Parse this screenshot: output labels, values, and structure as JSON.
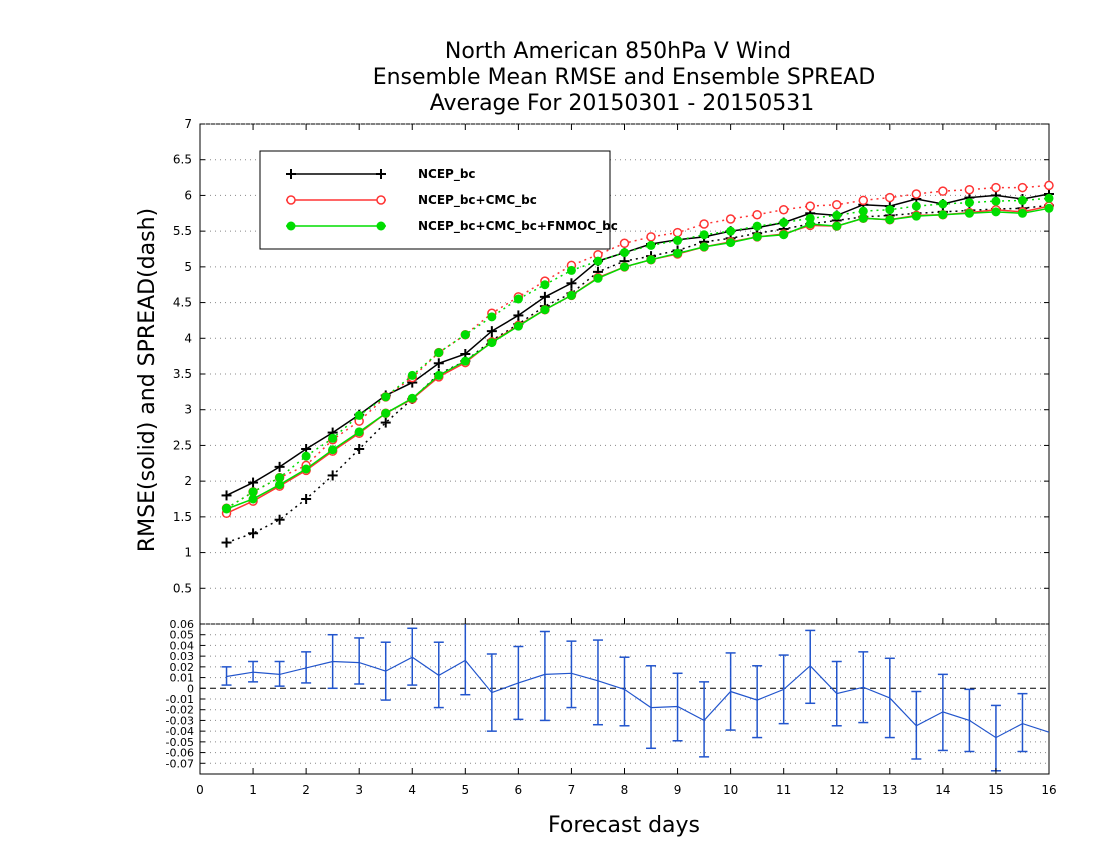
{
  "chart_data": [
    {
      "type": "line",
      "title": [
        "North American 850hPa V Wind",
        "Ensemble Mean RMSE and Ensemble SPREAD",
        "Average For 20150301 - 20150531"
      ],
      "xlabel": "Forecast days",
      "ylabel": "RMSE(solid)  and  SPREAD(dash)",
      "xlim": [
        0,
        16
      ],
      "ylim": [
        0,
        7
      ],
      "x_ticks": [
        0,
        1,
        2,
        3,
        4,
        5,
        6,
        7,
        8,
        9,
        10,
        11,
        12,
        13,
        14,
        15,
        16
      ],
      "y_ticks": [
        0.5,
        1,
        1.5,
        2,
        2.5,
        3,
        3.5,
        4,
        4.5,
        5,
        5.5,
        6,
        6.5,
        7
      ],
      "legend_position": "top-left",
      "x": [
        0.5,
        1,
        1.5,
        2,
        2.5,
        3,
        3.5,
        4,
        4.5,
        5,
        5.5,
        6,
        6.5,
        7,
        7.5,
        8,
        8.5,
        9,
        9.5,
        10,
        10.5,
        11,
        11.5,
        12,
        12.5,
        13,
        13.5,
        14,
        14.5,
        15,
        15.5,
        16
      ],
      "series": [
        {
          "name": "NCEP_bc",
          "color": "#000000",
          "marker": "plus",
          "kind": "rmse",
          "values": [
            1.8,
            1.98,
            2.2,
            2.45,
            2.68,
            2.93,
            3.2,
            3.38,
            3.65,
            3.78,
            4.1,
            4.32,
            4.58,
            4.77,
            5.08,
            5.2,
            5.32,
            5.38,
            5.42,
            5.5,
            5.55,
            5.62,
            5.75,
            5.72,
            5.87,
            5.85,
            5.95,
            5.88,
            5.97,
            6.0,
            5.95,
            6.02
          ]
        },
        {
          "name": "NCEP_bc",
          "color": "#000000",
          "marker": "plus",
          "kind": "spread",
          "values": [
            1.14,
            1.27,
            1.46,
            1.75,
            2.08,
            2.45,
            2.82,
            3.15,
            3.5,
            3.68,
            3.97,
            4.2,
            4.45,
            4.63,
            4.93,
            5.08,
            5.15,
            5.23,
            5.35,
            5.4,
            5.47,
            5.53,
            5.6,
            5.65,
            5.7,
            5.72,
            5.75,
            5.77,
            5.79,
            5.81,
            5.82,
            5.86
          ]
        },
        {
          "name": "NCEP_bc+CMC_bc",
          "color": "#ff3333",
          "marker": "circle",
          "kind": "rmse",
          "values": [
            1.55,
            1.72,
            1.93,
            2.15,
            2.42,
            2.67,
            2.95,
            3.15,
            3.46,
            3.66,
            3.95,
            4.18,
            4.4,
            4.6,
            4.85,
            5.0,
            5.1,
            5.18,
            5.28,
            5.35,
            5.42,
            5.46,
            5.58,
            5.57,
            5.68,
            5.66,
            5.72,
            5.73,
            5.76,
            5.8,
            5.77,
            5.85
          ]
        },
        {
          "name": "NCEP_bc+CMC_bc",
          "color": "#ff3333",
          "marker": "circle",
          "kind": "spread",
          "values": [
            1.62,
            1.85,
            2.05,
            2.22,
            2.58,
            2.84,
            3.18,
            3.45,
            3.8,
            4.05,
            4.35,
            4.58,
            4.8,
            5.02,
            5.17,
            5.33,
            5.42,
            5.48,
            5.6,
            5.67,
            5.73,
            5.8,
            5.85,
            5.87,
            5.93,
            5.97,
            6.02,
            6.06,
            6.08,
            6.11,
            6.11,
            6.14
          ]
        },
        {
          "name": "NCEP_bc+CMC_bc+FNMOC_bc",
          "color": "#00dd00",
          "marker": "dot",
          "kind": "rmse",
          "values": [
            1.61,
            1.75,
            1.95,
            2.17,
            2.44,
            2.69,
            2.95,
            3.16,
            3.48,
            3.68,
            3.94,
            4.17,
            4.4,
            4.6,
            4.84,
            5.0,
            5.1,
            5.19,
            5.28,
            5.34,
            5.42,
            5.45,
            5.6,
            5.57,
            5.68,
            5.66,
            5.71,
            5.73,
            5.75,
            5.77,
            5.75,
            5.82
          ]
        },
        {
          "name": "NCEP_bc+CMC_bc+FNMOC_bc",
          "color": "#00dd00",
          "marker": "dot",
          "kind": "spread",
          "values": [
            1.62,
            1.85,
            2.05,
            2.35,
            2.6,
            2.92,
            3.18,
            3.48,
            3.8,
            4.05,
            4.3,
            4.55,
            4.75,
            4.95,
            5.08,
            5.2,
            5.3,
            5.37,
            5.45,
            5.5,
            5.57,
            5.62,
            5.68,
            5.72,
            5.78,
            5.8,
            5.85,
            5.88,
            5.9,
            5.92,
            5.93,
            5.96
          ]
        }
      ]
    },
    {
      "type": "line",
      "xlim": [
        0,
        16
      ],
      "ylim": [
        -0.08,
        0.06
      ],
      "y_ticks": [
        -0.07,
        -0.06,
        -0.05,
        -0.04,
        -0.03,
        -0.02,
        -0.01,
        0,
        0.01,
        0.02,
        0.03,
        0.04,
        0.05,
        0.06
      ],
      "y_tick_labels": [
        "-0.07",
        "-0.06",
        "-0.05",
        "-0.04",
        "-0.03",
        "-0.02",
        "-0.01",
        "0",
        "0.01",
        "0.02",
        "0.03",
        "0.04",
        "0.05",
        "0.06"
      ],
      "color": "#2255cc",
      "x": [
        0.5,
        1,
        1.5,
        2,
        2.5,
        3,
        3.5,
        4,
        4.5,
        5,
        5.5,
        6,
        6.5,
        7,
        7.5,
        8,
        8.5,
        9,
        9.5,
        10,
        10.5,
        11,
        11.5,
        12,
        12.5,
        13,
        13.5,
        14,
        14.5,
        15,
        15.5,
        16
      ],
      "values": [
        0.011,
        0.015,
        0.013,
        0.019,
        0.025,
        0.024,
        0.016,
        0.029,
        0.012,
        0.026,
        -0.004,
        0.005,
        0.013,
        0.014,
        0.007,
        -0.001,
        -0.018,
        -0.017,
        -0.03,
        -0.003,
        -0.011,
        -0.001,
        0.021,
        -0.005,
        0.001,
        -0.009,
        -0.035,
        -0.022,
        -0.03,
        -0.046,
        -0.033,
        -0.041
      ],
      "error_low": [
        0.003,
        0.006,
        0.002,
        0.005,
        0.0,
        0.004,
        -0.011,
        0.003,
        -0.018,
        -0.006,
        -0.04,
        -0.029,
        -0.03,
        -0.018,
        -0.034,
        -0.035,
        -0.056,
        -0.049,
        -0.064,
        -0.039,
        -0.046,
        -0.033,
        -0.014,
        -0.035,
        -0.032,
        -0.046,
        -0.066,
        -0.058,
        -0.059,
        -0.077,
        -0.059,
        null
      ],
      "error_high": [
        0.02,
        0.025,
        0.025,
        0.034,
        0.05,
        0.047,
        0.043,
        0.056,
        0.043,
        0.062,
        0.032,
        0.039,
        0.053,
        0.044,
        0.045,
        0.029,
        0.021,
        0.014,
        0.006,
        0.033,
        0.021,
        0.031,
        0.054,
        0.025,
        0.034,
        0.028,
        -0.003,
        0.013,
        -0.001,
        -0.016,
        -0.005,
        null
      ]
    }
  ]
}
